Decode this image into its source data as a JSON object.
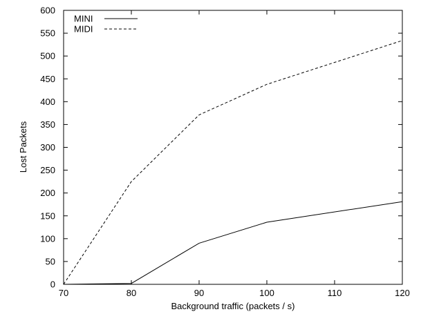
{
  "chart_data": {
    "type": "line",
    "title": "",
    "xlabel": "Background traffic (packets / s)",
    "ylabel": "Lost Packets",
    "xlim": [
      70,
      120
    ],
    "ylim": [
      0,
      600
    ],
    "x_ticks": [
      70,
      80,
      90,
      100,
      110,
      120
    ],
    "y_ticks": [
      0,
      50,
      100,
      150,
      200,
      250,
      300,
      350,
      400,
      450,
      500,
      550,
      600
    ],
    "x": [
      70,
      80,
      90,
      100,
      120
    ],
    "series": [
      {
        "name": "MINI",
        "style": "solid",
        "values": [
          0,
          2,
          90,
          136,
          181
        ]
      },
      {
        "name": "MIDI",
        "style": "dashed",
        "values": [
          0,
          225,
          371,
          438,
          534
        ]
      }
    ],
    "legend": {
      "position": "top-left"
    },
    "grid": false,
    "colors": {
      "line": "#000000",
      "axis": "#000000",
      "background": "#ffffff"
    }
  }
}
